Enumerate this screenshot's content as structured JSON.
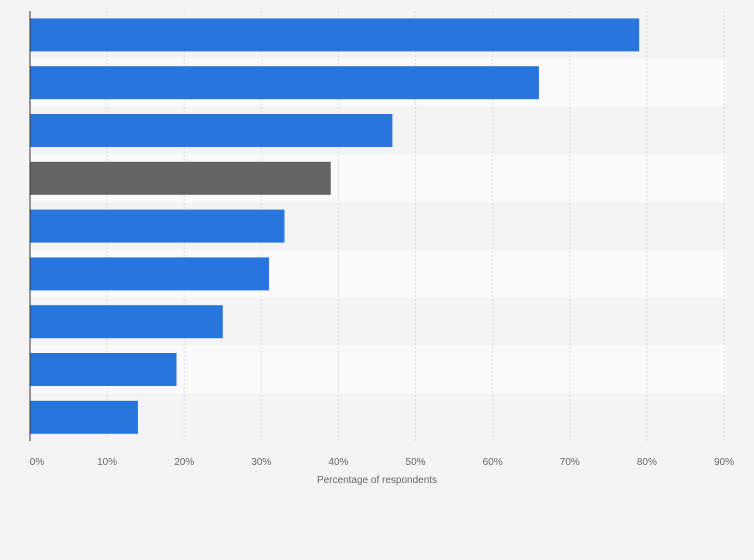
{
  "chart_data": {
    "type": "bar",
    "orientation": "horizontal",
    "title": "",
    "xlabel": "Percentage of respondents",
    "ylabel": "",
    "categories": [
      "",
      "",
      "",
      "",
      "",
      "",
      "",
      "",
      ""
    ],
    "values": [
      79,
      66,
      47,
      39,
      33,
      31,
      25,
      19,
      14
    ],
    "highlight_index": 3,
    "xlim": [
      0,
      90
    ],
    "ticks": [
      "0%",
      "10%",
      "20%",
      "30%",
      "40%",
      "50%",
      "60%",
      "70%",
      "80%",
      "90%"
    ],
    "grid": true,
    "legend": "none",
    "colors": {
      "bar": "#2876dd",
      "highlight": "#646464",
      "band_dark": "#f4f4f4",
      "band_light": "#fafafa",
      "grid": "#dddddd",
      "axis": "#333333"
    }
  }
}
